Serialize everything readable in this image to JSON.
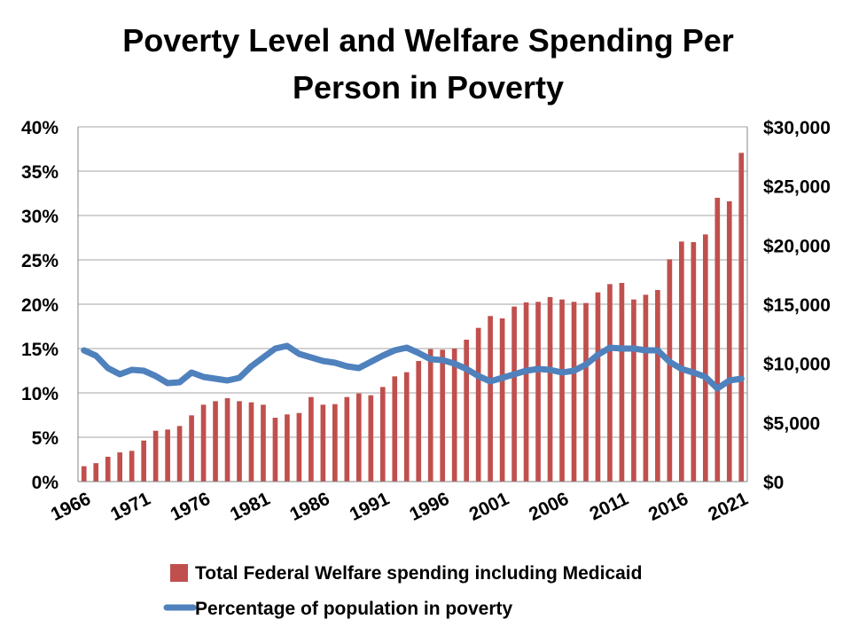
{
  "chart_data": {
    "type": "bar+line",
    "title": [
      "Poverty Level and Welfare Spending Per",
      "Person in Poverty"
    ],
    "colors": {
      "bars": "#c0504d",
      "line": "#4f81bd",
      "grid": "#a6a6a6"
    },
    "y_left": {
      "ylim": [
        0,
        40
      ],
      "ticks": [
        0,
        5,
        10,
        15,
        20,
        25,
        30,
        35,
        40
      ],
      "tick_labels": [
        "0%",
        "5%",
        "10%",
        "15%",
        "20%",
        "25%",
        "30%",
        "35%",
        "40%"
      ]
    },
    "y_right": {
      "ylim": [
        0,
        30000
      ],
      "ticks": [
        0,
        5000,
        10000,
        15000,
        20000,
        25000,
        30000
      ],
      "tick_labels": [
        "$0",
        "$5,000",
        "$10,000",
        "$15,000",
        "$20,000",
        "$25,000",
        "$30,000"
      ]
    },
    "x": [
      1966,
      1967,
      1968,
      1969,
      1970,
      1971,
      1972,
      1973,
      1974,
      1975,
      1976,
      1977,
      1978,
      1979,
      1980,
      1981,
      1982,
      1983,
      1984,
      1985,
      1986,
      1987,
      1988,
      1989,
      1990,
      1991,
      1992,
      1993,
      1994,
      1995,
      1996,
      1997,
      1998,
      1999,
      2000,
      2001,
      2002,
      2003,
      2004,
      2005,
      2006,
      2007,
      2008,
      2009,
      2010,
      2011,
      2012,
      2013,
      2014,
      2015,
      2016,
      2017,
      2018,
      2019,
      2020,
      2021
    ],
    "x_tick_labels": [
      "1966",
      "1971",
      "1976",
      "1981",
      "1986",
      "1991",
      "1996",
      "2001",
      "2006",
      "2011",
      "2016",
      "2021"
    ],
    "grid": "horizontal",
    "legend_position": "bottom",
    "series": [
      {
        "name": "Total Federal Welfare spending including Medicaid",
        "type": "bar",
        "axis": "right",
        "values": [
          1300,
          1560,
          2100,
          2470,
          2600,
          3470,
          4300,
          4400,
          4700,
          5600,
          6500,
          6800,
          7050,
          6800,
          6700,
          6500,
          5400,
          5680,
          5800,
          7150,
          6500,
          6550,
          7150,
          7450,
          7300,
          8000,
          8900,
          9250,
          10200,
          11200,
          11150,
          11250,
          12000,
          13000,
          14000,
          13800,
          14800,
          15150,
          15200,
          15600,
          15400,
          15200,
          15100,
          16000,
          16700,
          16800,
          15400,
          15800,
          16200,
          18800,
          20300,
          20250,
          20900,
          24000,
          23700,
          27800
        ]
      },
      {
        "name": "Percentage of population in poverty",
        "type": "line",
        "axis": "left",
        "values": [
          14.8,
          14.2,
          12.8,
          12.1,
          12.6,
          12.5,
          11.9,
          11.1,
          11.2,
          12.3,
          11.8,
          11.6,
          11.4,
          11.7,
          13.0,
          14.0,
          15.0,
          15.3,
          14.4,
          14.0,
          13.6,
          13.4,
          13.0,
          12.8,
          13.5,
          14.2,
          14.8,
          15.1,
          14.5,
          13.8,
          13.7,
          13.3,
          12.7,
          11.9,
          11.3,
          11.7,
          12.1,
          12.5,
          12.7,
          12.6,
          12.3,
          12.5,
          13.2,
          14.3,
          15.1,
          15.0,
          15.0,
          14.8,
          14.8,
          13.5,
          12.7,
          12.3,
          11.8,
          10.5,
          11.4,
          11.6
        ]
      }
    ]
  }
}
